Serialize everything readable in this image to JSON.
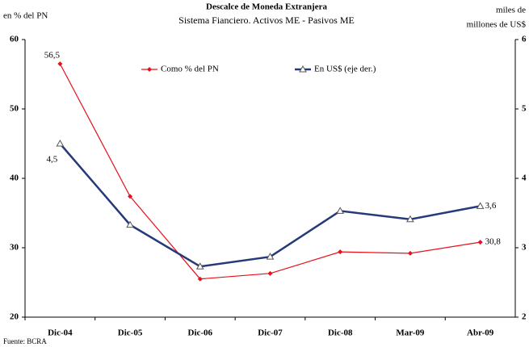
{
  "chart_data": {
    "type": "line",
    "title": "Descalce de Moneda Extranjera",
    "subtitle": "Sistema Fianciero. Activos ME - Pasivos ME",
    "ylabel": "en % del PN",
    "y2label": [
      "miles de",
      "millones de US$"
    ],
    "source": "Fuente: BCRA",
    "categories": [
      "Dic-04",
      "Dic-05",
      "Dic-06",
      "Dic-07",
      "Dic-08",
      "Mar-09",
      "Abr-09"
    ],
    "series": [
      {
        "name": "Como % del PN",
        "color": "#e8101a",
        "marker": "diamond",
        "values": [
          56.5,
          37.4,
          25.5,
          26.3,
          29.4,
          29.2,
          30.8
        ],
        "value_labels": [
          "56,5",
          null,
          null,
          null,
          null,
          null,
          "30,8"
        ]
      },
      {
        "name": "En US$ (eje der.)",
        "color": "#253a78",
        "marker": "triangle",
        "axis": "y2",
        "values": [
          4.5,
          3.33,
          2.73,
          2.87,
          3.53,
          3.41,
          3.6
        ],
        "value_labels": [
          "4,5",
          null,
          null,
          null,
          null,
          null,
          "3,6"
        ]
      }
    ],
    "ylim": [
      20,
      60
    ],
    "yticks": [
      20,
      30,
      40,
      50,
      60
    ],
    "y2lim": [
      2,
      6
    ],
    "y2ticks": [
      2,
      3,
      4,
      5,
      6
    ],
    "grid": false,
    "legend": "top"
  }
}
